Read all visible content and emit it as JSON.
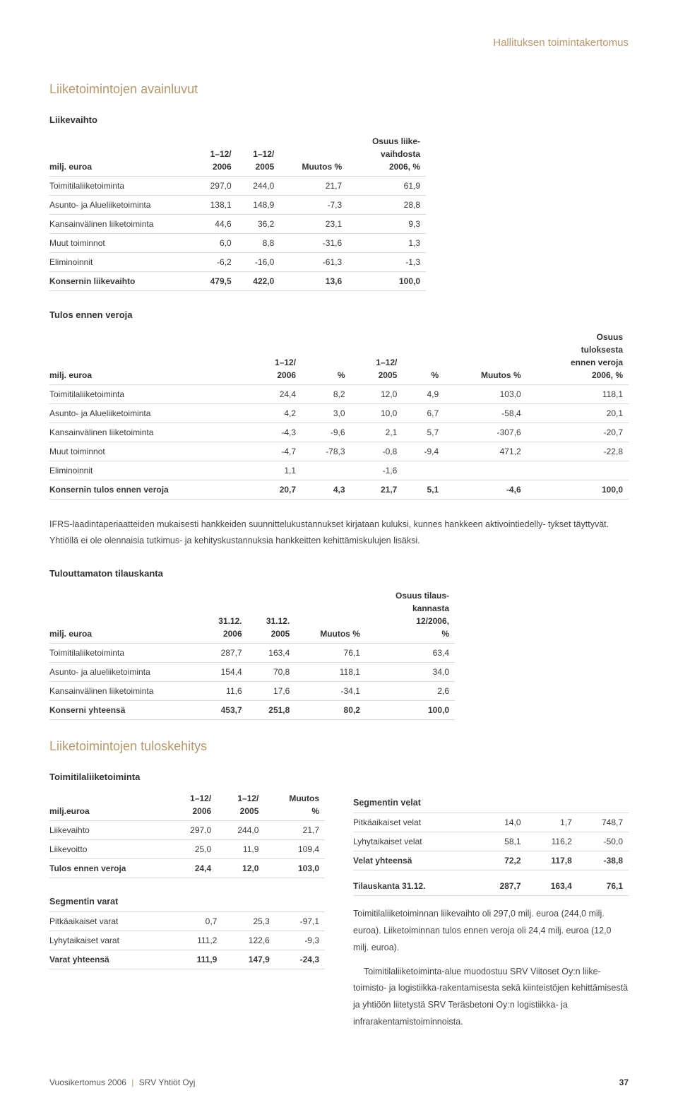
{
  "header_label": "Hallituksen toimintakertomus",
  "section1_title": "Liiketoimintojen avainluvut",
  "t1_title": "Liikevaihto",
  "t1_headers": [
    "milj. euroa",
    "1–12/\n2006",
    "1–12/\n2005",
    "Muutos %",
    "Osuus liike-\nvaihdosta\n2006, %"
  ],
  "t1_rows": [
    [
      "Toimitilaliiketoiminta",
      "297,0",
      "244,0",
      "21,7",
      "61,9"
    ],
    [
      "Asunto- ja Alueliiketoiminta",
      "138,1",
      "148,9",
      "-7,3",
      "28,8"
    ],
    [
      "Kansainvälinen liiketoiminta",
      "44,6",
      "36,2",
      "23,1",
      "9,3"
    ],
    [
      "Muut toiminnot",
      "6,0",
      "8,8",
      "-31,6",
      "1,3"
    ],
    [
      "Eliminoinnit",
      "-6,2",
      "-16,0",
      "-61,3",
      "-1,3"
    ]
  ],
  "t1_total": [
    "Konsernin liikevaihto",
    "479,5",
    "422,0",
    "13,6",
    "100,0"
  ],
  "t2_title": "Tulos ennen veroja",
  "t2_headers": [
    "milj. euroa",
    "1–12/\n2006",
    "%",
    "1–12/\n2005",
    "%",
    "Muutos %",
    "Osuus\ntuloksesta\nennen veroja\n2006, %"
  ],
  "t2_rows": [
    [
      "Toimitilaliiketoiminta",
      "24,4",
      "8,2",
      "12,0",
      "4,9",
      "103,0",
      "118,1"
    ],
    [
      "Asunto- ja Alueliiketoiminta",
      "4,2",
      "3,0",
      "10,0",
      "6,7",
      "-58,4",
      "20,1"
    ],
    [
      "Kansainvälinen liiketoiminta",
      "-4,3",
      "-9,6",
      "2,1",
      "5,7",
      "-307,6",
      "-20,7"
    ],
    [
      "Muut toiminnot",
      "-4,7",
      "-78,3",
      "-0,8",
      "-9,4",
      "471,2",
      "-22,8"
    ],
    [
      "Eliminoinnit",
      "1,1",
      "",
      "-1,6",
      "",
      "",
      ""
    ]
  ],
  "t2_total": [
    "Konsernin tulos ennen veroja",
    "20,7",
    "4,3",
    "21,7",
    "5,1",
    "-4,6",
    "100,0"
  ],
  "para1": "IFRS-laadintaperiaatteiden mukaisesti hankkeiden suunnittelukustannukset kirjataan kuluksi, kunnes hankkeen aktivointiedelly-\ntykset täyttyvät. Yhtiöllä ei ole olennaisia tutkimus- ja kehityskustannuksia hankkeitten kehittämiskulujen lisäksi.",
  "t3_title": "Tulouttamaton tilauskanta",
  "t3_headers": [
    "milj. euroa",
    "31.12.\n2006",
    "31.12.\n2005",
    "Muutos %",
    "Osuus tilaus-\nkannasta\n12/2006,\n%"
  ],
  "t3_rows": [
    [
      "Toimitilaliiketoiminta",
      "287,7",
      "163,4",
      "76,1",
      "63,4"
    ],
    [
      "Asunto- ja alueliiketoiminta",
      "154,4",
      "70,8",
      "118,1",
      "34,0"
    ],
    [
      "Kansainvälinen liiketoiminta",
      "11,6",
      "17,6",
      "-34,1",
      "2,6"
    ]
  ],
  "t3_total": [
    "Konserni yhteensä",
    "453,7",
    "251,8",
    "80,2",
    "100,0"
  ],
  "section2_title": "Liiketoimintojen tuloskehitys",
  "t4_title": "Toimitilaliiketoiminta",
  "t4_headers": [
    "milj.euroa",
    "1–12/\n2006",
    "1–12/\n2005",
    "Muutos\n%"
  ],
  "t4_rows": [
    [
      "Liikevaihto",
      "297,0",
      "244,0",
      "21,7"
    ],
    [
      "Liikevoitto",
      "25,0",
      "11,9",
      "109,4"
    ]
  ],
  "t4_total": [
    "Tulos ennen veroja",
    "24,4",
    "12,0",
    "103,0"
  ],
  "t5_title": "Segmentin varat",
  "t5_rows": [
    [
      "Pitkäaikaiset varat",
      "0,7",
      "25,3",
      "-97,1"
    ],
    [
      "Lyhytaikaiset varat",
      "111,2",
      "122,6",
      "-9,3"
    ]
  ],
  "t5_total": [
    "Varat yhteensä",
    "111,9",
    "147,9",
    "-24,3"
  ],
  "t6_title": "Segmentin velat",
  "t6_rows": [
    [
      "Pitkäaikaiset velat",
      "14,0",
      "1,7",
      "748,7"
    ],
    [
      "Lyhytaikaiset velat",
      "58,1",
      "116,2",
      "-50,0"
    ]
  ],
  "t6_total": [
    "Velat yhteensä",
    "72,2",
    "117,8",
    "-38,8"
  ],
  "t6_extra": [
    "Tilauskanta 31.12.",
    "287,7",
    "163,4",
    "76,1"
  ],
  "para2": "Toimitilaliiketoiminnan liikevaihto oli 297,0 milj. euroa (244,0 milj. euroa). Liiketoiminnan tulos ennen veroja oli 24,4 milj. euroa (12,0 milj. euroa).",
  "para3": "Toimitilaliiketoiminta-alue muodostuu SRV Viitoset Oy:n liike- toimisto- ja logistiikka-rakentamisesta sekä kiinteistöjen kehittämisestä ja yhtiöön liitetystä SRV Teräsbetoni Oy:n logistiikka- ja infrarakentamistoiminnoista.",
  "footer_left_a": "Vuosikertomus 2006",
  "footer_left_b": "SRV Yhtiöt Oyj",
  "footer_page": "37"
}
